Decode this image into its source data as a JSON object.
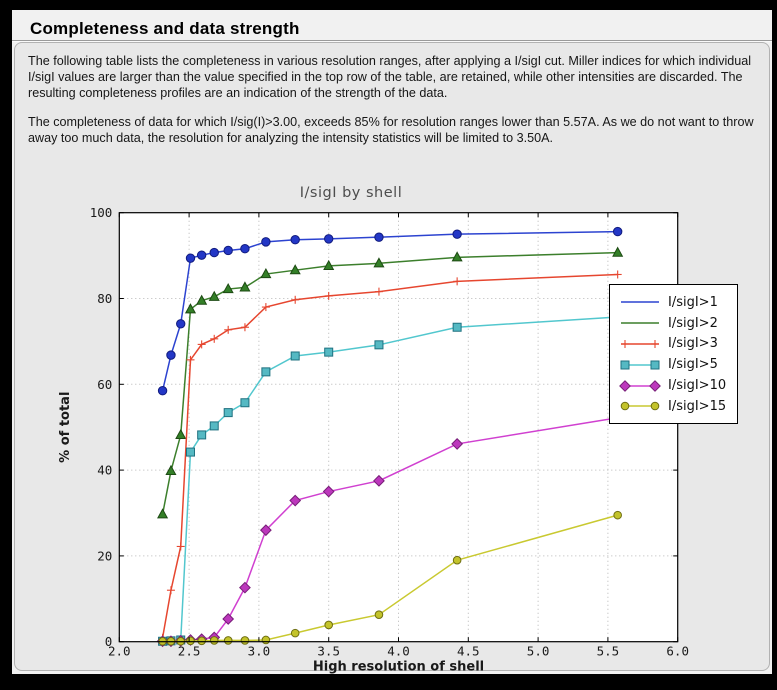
{
  "window": {
    "title": "Completeness and data strength"
  },
  "intro": {
    "paragraph1": "The following table lists the completeness in various resolution ranges, after applying a I/sigI cut. Miller indices for which individual I/sigI values are larger than the value specified in the top row of the table, are retained, while other intensities are discarded. The resulting completeness profiles are an indication of the strength of the data.",
    "paragraph2": "The completeness of data for which I/sig(I)>3.00, exceeds  85% for resolution ranges lower than 5.57A. As we do not want to throw away too much data, the resolution for analyzing the intensity statistics will be limited to 3.50A."
  },
  "chart_data": {
    "type": "line",
    "title": "I/sigI by shell",
    "xlabel": "High resolution of shell",
    "ylabel": "% of total",
    "xlim": [
      2.0,
      6.0
    ],
    "ylim": [
      0,
      100
    ],
    "xticks": [
      2.0,
      2.5,
      3.0,
      3.5,
      4.0,
      4.5,
      5.0,
      5.5,
      6.0
    ],
    "yticks": [
      0,
      20,
      40,
      60,
      80,
      100
    ],
    "grid": true,
    "legend_position": "top-right",
    "x": [
      2.31,
      2.37,
      2.44,
      2.51,
      2.59,
      2.68,
      2.78,
      2.9,
      3.05,
      3.26,
      3.5,
      3.86,
      4.42,
      5.57
    ],
    "series": [
      {
        "name": "I/sigI>1",
        "color": "#2c43d0",
        "marker": "circle",
        "marker_fill": "#2337c6",
        "marker_edge": "#111b7e",
        "legend_marker": false,
        "values": [
          58.5,
          66.8,
          74.1,
          89.4,
          90.1,
          90.7,
          91.2,
          91.6,
          93.2,
          93.7,
          93.9,
          94.3,
          95.0,
          95.6
        ]
      },
      {
        "name": "I/sigI>2",
        "color": "#3c7f2c",
        "marker": "triangle",
        "marker_fill": "#337f27",
        "marker_edge": "#1d4a13",
        "legend_marker": false,
        "values": [
          29.7,
          39.8,
          48.2,
          77.5,
          79.5,
          80.4,
          82.2,
          82.6,
          85.7,
          86.6,
          87.6,
          88.2,
          89.6,
          90.7
        ]
      },
      {
        "name": "I/sigI>3",
        "color": "#e6462f",
        "marker": "plus",
        "marker_fill": "#e6462f",
        "marker_edge": "#e6462f",
        "legend_marker": true,
        "values": [
          0.9,
          12.0,
          22.2,
          65.7,
          69.3,
          70.6,
          72.7,
          73.3,
          78.0,
          79.7,
          80.6,
          81.6,
          84.0,
          85.6
        ]
      },
      {
        "name": "I/sigI>5",
        "color": "#52c7ce",
        "marker": "square",
        "marker_fill": "#55b9c3",
        "marker_edge": "#1f7180",
        "legend_marker": true,
        "values": [
          0.1,
          0.2,
          0.4,
          44.2,
          48.2,
          50.3,
          53.4,
          55.7,
          62.9,
          66.6,
          67.5,
          69.2,
          73.3,
          75.7
        ]
      },
      {
        "name": "I/sigI>10",
        "color": "#d040d0",
        "marker": "diamond",
        "marker_fill": "#bc37bc",
        "marker_edge": "#771e77",
        "legend_marker": true,
        "values": [
          0.1,
          0.1,
          0.2,
          0.4,
          0.6,
          1.0,
          5.3,
          12.6,
          26.0,
          32.9,
          35.0,
          37.5,
          46.1,
          52.2
        ]
      },
      {
        "name": "I/sigI>15",
        "color": "#c9c930",
        "marker": "circle_small",
        "marker_fill": "#c3c32a",
        "marker_edge": "#6e6e12",
        "legend_marker": true,
        "values": [
          0.1,
          0.1,
          0.1,
          0.2,
          0.2,
          0.3,
          0.3,
          0.3,
          0.4,
          2.0,
          3.9,
          6.3,
          19.0,
          29.5
        ]
      }
    ]
  }
}
